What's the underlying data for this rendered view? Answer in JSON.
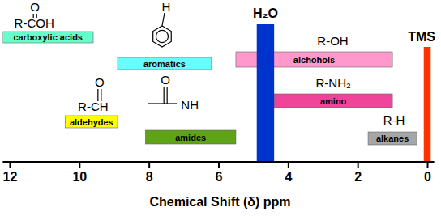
{
  "chart_data": {
    "type": "range",
    "orientation": "horizontal",
    "x_label": "Chemical Shift (δ) ppm",
    "xlim": [
      12.2,
      -0.2
    ],
    "xticks": [
      12,
      10,
      8,
      6,
      4,
      2,
      0
    ],
    "ranges": [
      {
        "label": "carboxylic acids",
        "formula": "R-COH",
        "atom": "O",
        "start": 12.2,
        "end": 9.6,
        "color": "#66ffcc"
      },
      {
        "label": "aromatics",
        "atom": "H",
        "start": 8.9,
        "end": 6.2,
        "color": "#66ffff"
      },
      {
        "label": "aldehydes",
        "formula": "R-CH",
        "atom": "O",
        "start": 10.4,
        "end": 8.9,
        "color": "#ffff00"
      },
      {
        "label": "amides",
        "formula": "NH",
        "atom": "O",
        "start": 8.1,
        "end": 5.5,
        "color": "#5fa319"
      },
      {
        "label": "alchohols",
        "formula": "R-OH",
        "start": 5.5,
        "end": 1.0,
        "color": "#ff99cc"
      },
      {
        "label": "amino",
        "formula": "R-NH₂",
        "start": 4.4,
        "end": 1.0,
        "color": "#f0439a"
      },
      {
        "label": "alkanes",
        "formula": "R-H",
        "start": 1.7,
        "end": 0.3,
        "color": "#a6a6a6"
      },
      {
        "formula": "H₂O",
        "start": 4.9,
        "end": 4.4,
        "color": "#0033cc"
      },
      {
        "formula": "TMS",
        "start": 0.1,
        "end": -0.1,
        "color": "#ff3300"
      }
    ]
  }
}
